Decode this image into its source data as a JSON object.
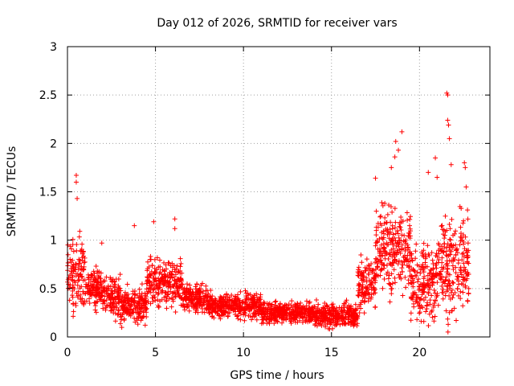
{
  "chart_data": {
    "type": "scatter",
    "title": "Day 012 of 2026, SRMTID for receiver vars",
    "xlabel": "GPS time / hours",
    "ylabel": "SRMTID / TECUs",
    "xlim": [
      0,
      24
    ],
    "ylim": [
      0,
      3
    ],
    "x_ticks": [
      0,
      5,
      10,
      15,
      20
    ],
    "x_tick_labels": [
      "0",
      "5",
      "10",
      "15",
      "20"
    ],
    "y_ticks": [
      0,
      0.5,
      1,
      1.5,
      2,
      2.5,
      3
    ],
    "y_tick_labels": [
      "0",
      "0.5",
      "1",
      "1.5",
      "2",
      "2.5",
      "3"
    ],
    "grid": true,
    "marker": "+",
    "series_color": "#ff0000",
    "segments": [
      {
        "t0": 0.0,
        "t1": 1.0,
        "lo": 0.1,
        "hi": 1.2
      },
      {
        "t0": 1.0,
        "t1": 2.0,
        "lo": 0.2,
        "hi": 0.8
      },
      {
        "t0": 2.0,
        "t1": 3.0,
        "lo": 0.15,
        "hi": 0.7
      },
      {
        "t0": 3.0,
        "t1": 4.5,
        "lo": 0.05,
        "hi": 0.6
      },
      {
        "t0": 4.5,
        "t1": 6.5,
        "lo": 0.2,
        "hi": 0.9
      },
      {
        "t0": 6.5,
        "t1": 8.0,
        "lo": 0.2,
        "hi": 0.6
      },
      {
        "t0": 8.0,
        "t1": 11.0,
        "lo": 0.15,
        "hi": 0.5
      },
      {
        "t0": 11.0,
        "t1": 14.0,
        "lo": 0.1,
        "hi": 0.4
      },
      {
        "t0": 14.0,
        "t1": 16.5,
        "lo": 0.05,
        "hi": 0.4
      },
      {
        "t0": 16.5,
        "t1": 17.5,
        "lo": 0.15,
        "hi": 0.9
      },
      {
        "t0": 17.5,
        "t1": 19.5,
        "lo": 0.3,
        "hi": 1.5
      },
      {
        "t0": 19.5,
        "t1": 21.0,
        "lo": 0.0,
        "hi": 1.1
      },
      {
        "t0": 21.0,
        "t1": 22.8,
        "lo": 0.0,
        "hi": 1.5
      }
    ],
    "outliers": [
      {
        "x": 0.5,
        "y": 1.67
      },
      {
        "x": 0.5,
        "y": 1.6
      },
      {
        "x": 0.55,
        "y": 1.43
      },
      {
        "x": 3.8,
        "y": 1.15
      },
      {
        "x": 4.9,
        "y": 1.19
      },
      {
        "x": 6.1,
        "y": 1.22
      },
      {
        "x": 6.1,
        "y": 1.12
      },
      {
        "x": 1.95,
        "y": 0.97
      },
      {
        "x": 17.5,
        "y": 1.64
      },
      {
        "x": 18.4,
        "y": 1.75
      },
      {
        "x": 18.6,
        "y": 1.86
      },
      {
        "x": 18.65,
        "y": 2.02
      },
      {
        "x": 18.8,
        "y": 1.93
      },
      {
        "x": 19.0,
        "y": 2.12
      },
      {
        "x": 20.5,
        "y": 1.7
      },
      {
        "x": 20.9,
        "y": 1.85
      },
      {
        "x": 21.0,
        "y": 1.65
      },
      {
        "x": 21.55,
        "y": 2.52
      },
      {
        "x": 21.6,
        "y": 2.5
      },
      {
        "x": 21.6,
        "y": 2.24
      },
      {
        "x": 21.65,
        "y": 2.19
      },
      {
        "x": 21.7,
        "y": 2.05
      },
      {
        "x": 21.8,
        "y": 1.78
      },
      {
        "x": 22.55,
        "y": 1.8
      },
      {
        "x": 22.6,
        "y": 1.75
      },
      {
        "x": 22.65,
        "y": 1.55
      },
      {
        "x": 22.5,
        "y": 1.2
      }
    ]
  }
}
